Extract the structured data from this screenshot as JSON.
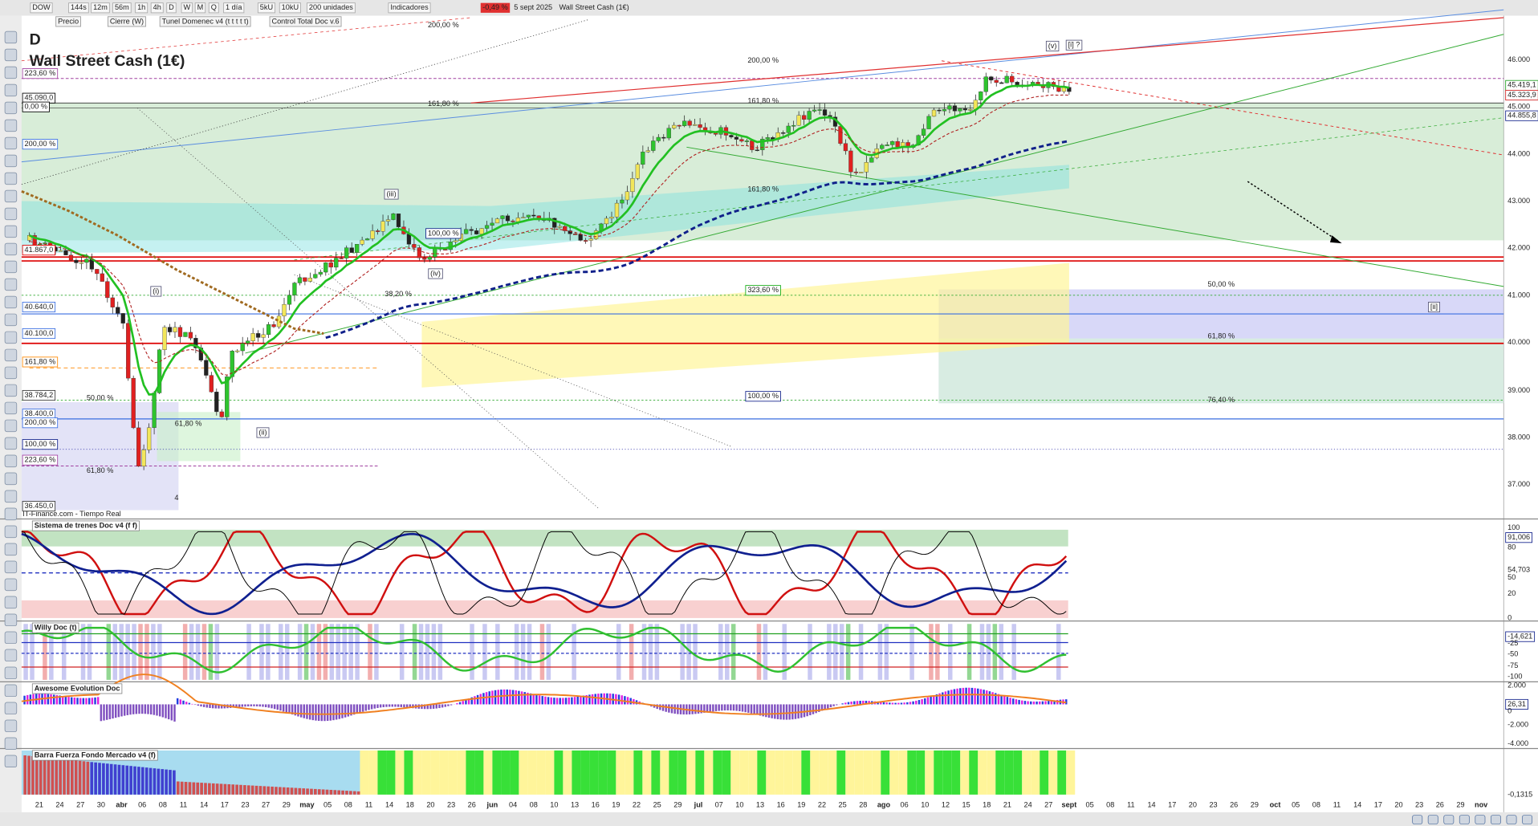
{
  "toolbar": {
    "items": [
      "DOW",
      "144s",
      "12m",
      "56m",
      "1h",
      "4h",
      "D",
      "W",
      "M",
      "Q",
      "1 día",
      "5kU",
      "10kU",
      "200 unidades",
      "Indicadores",
      "-0,49 %",
      "5 sept 2025",
      "Wall Street Cash (1€)"
    ]
  },
  "legend_row": [
    "Precio",
    "Cierre (W)",
    "Tunel Domenec v4 (t t t t t)",
    "Control Total Doc v.6"
  ],
  "chart": {
    "letter": "D",
    "name": "Wall Street Cash (1€)",
    "source": "IT-Finance.com - Tiempo Real",
    "price_axis": [
      "46.000",
      "45.419,1",
      "45.323,9",
      "45.000",
      "44.855,8",
      "44.000",
      "43.000",
      "42.000",
      "41.000",
      "40.000",
      "39.000",
      "38.000",
      "37.000"
    ],
    "left_labels": [
      "223,60 %",
      "45.090,0",
      "0,00 %",
      "200,00 %",
      "41.867,0",
      "40.640,0",
      "40.100,0",
      "161,80 %",
      "38.784,2",
      "38.400,0",
      "200,00 %",
      "100,00 %",
      "223,60 %",
      "36.450,0"
    ],
    "annotations": [
      "200,00 %",
      "200,00 %",
      "161,80 %",
      "161,80 %",
      "161,80 %",
      "323,60 %",
      "100,00 %",
      "100,00 %",
      "50,00 %",
      "61,80 %",
      "61,80 %",
      "61,80 %",
      "38,20 %",
      "76,40 %",
      "50,00 %"
    ],
    "waves": [
      "(i)",
      "(ii)",
      "(iii)",
      "(iv)",
      "(v)",
      "[i] ?",
      "[ii]",
      "4"
    ]
  },
  "panels": [
    {
      "title": "Sistema de trenes Doc v4 (f f)",
      "axis": [
        "100",
        "91,006",
        "80",
        "54,703",
        "50",
        "20",
        "0"
      ]
    },
    {
      "title": "Willy Doc (t)",
      "axis": [
        "-14,621",
        "-25",
        "-50",
        "-75",
        "-100"
      ]
    },
    {
      "title": "Awesome Evolution Doc",
      "axis": [
        "2.000",
        "26,31",
        "0",
        "-2.000",
        "-4.000"
      ]
    },
    {
      "title": "Barra Fuerza Fondo Mercado v4 (f)",
      "axis": [
        "-0,1315"
      ]
    }
  ],
  "dates": [
    "21",
    "24",
    "27",
    "30",
    "abr",
    "06",
    "08",
    "11",
    "14",
    "17",
    "23",
    "27",
    "29",
    "may",
    "05",
    "08",
    "11",
    "14",
    "18",
    "20",
    "23",
    "26",
    "jun",
    "04",
    "08",
    "10",
    "13",
    "16",
    "19",
    "22",
    "25",
    "29",
    "jul",
    "07",
    "10",
    "13",
    "16",
    "19",
    "22",
    "25",
    "28",
    "ago",
    "06",
    "10",
    "12",
    "15",
    "18",
    "21",
    "24",
    "27",
    "sept",
    "05",
    "08",
    "11",
    "14",
    "17",
    "20",
    "23",
    "26",
    "29",
    "oct",
    "05",
    "08",
    "11",
    "14",
    "17",
    "20",
    "23",
    "26",
    "29",
    "nov"
  ]
}
